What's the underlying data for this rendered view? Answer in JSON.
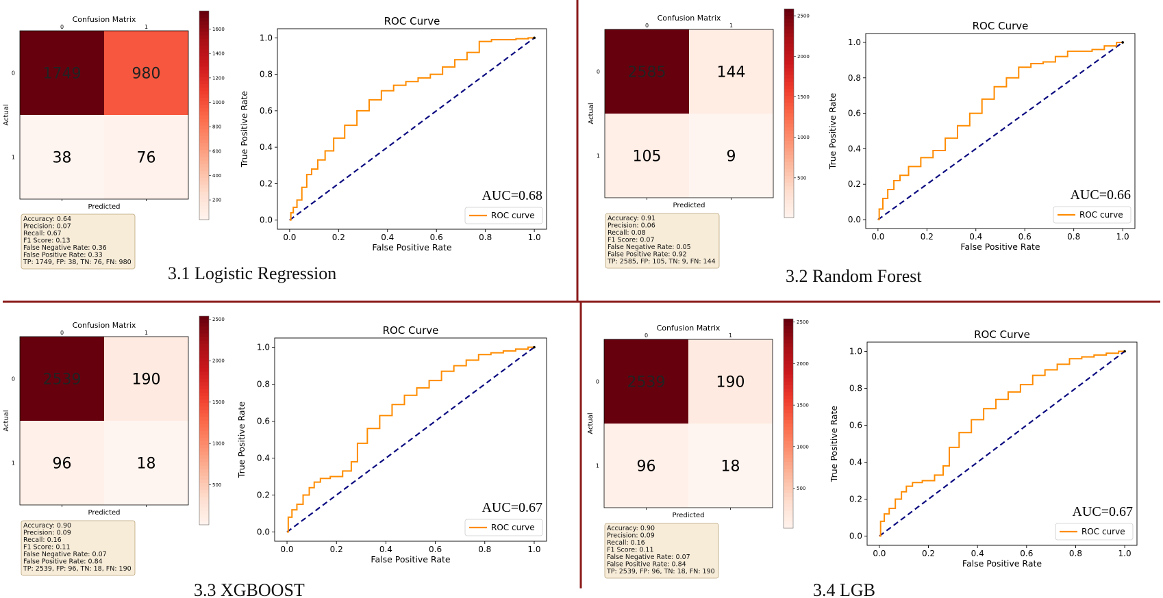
{
  "divider_color": "#8b1a1a",
  "panels": [
    {
      "model_title": "3.1 Logistic Regression",
      "confusion": {
        "title": "Confusion Matrix",
        "xlabel": "Predicted",
        "ylabel": "Actual",
        "tick_labels": [
          "0",
          "1"
        ],
        "values": [
          [
            1749,
            980
          ],
          [
            38,
            76
          ]
        ],
        "colorbar_ticks": [
          200,
          400,
          600,
          800,
          1000,
          1200,
          1400,
          1600
        ],
        "colorbar_max": 1749,
        "colorbar_min": 38
      },
      "metrics": [
        "Accuracy: 0.64",
        "Precision: 0.07",
        "Recall: 0.67",
        "F1 Score: 0.13",
        "False Negative Rate: 0.36",
        "False Positive Rate: 0.33",
        "TP: 1749, FP: 38, TN: 76, FN: 980"
      ],
      "roc": {
        "title": "ROC Curve",
        "xlabel": "False Positive Rate",
        "ylabel": "True Positive Rate",
        "auc_label": "AUC=0.68",
        "legend": "ROC curve",
        "x": [
          0,
          0.01,
          0.02,
          0.04,
          0.06,
          0.08,
          0.1,
          0.13,
          0.16,
          0.2,
          0.25,
          0.3,
          0.35,
          0.4,
          0.45,
          0.5,
          0.55,
          0.6,
          0.65,
          0.7,
          0.75,
          0.8,
          0.85,
          0.9,
          0.95,
          1.0
        ],
        "y": [
          0,
          0.04,
          0.07,
          0.11,
          0.18,
          0.25,
          0.28,
          0.33,
          0.38,
          0.45,
          0.52,
          0.6,
          0.66,
          0.71,
          0.74,
          0.76,
          0.78,
          0.8,
          0.84,
          0.88,
          0.92,
          0.98,
          0.99,
          0.99,
          0.995,
          1.0
        ]
      }
    },
    {
      "model_title": "3.2 Random Forest",
      "confusion": {
        "title": "Confusion Matrix",
        "xlabel": "Predicted",
        "ylabel": "Actual",
        "tick_labels": [
          "0",
          "1"
        ],
        "values": [
          [
            2585,
            144
          ],
          [
            105,
            9
          ]
        ],
        "colorbar_ticks": [
          500,
          1000,
          1500,
          2000,
          2500
        ],
        "colorbar_max": 2585,
        "colorbar_min": 9
      },
      "metrics": [
        "Accuracy: 0.91",
        "Precision: 0.06",
        "Recall: 0.08",
        "F1 Score: 0.07",
        "False Negative Rate: 0.05",
        "False Positive Rate: 0.92",
        "TP: 2585, FP: 105, TN: 9, FN: 144"
      ],
      "roc": {
        "title": "ROC Curve",
        "xlabel": "False Positive Rate",
        "ylabel": "True Positive Rate",
        "auc_label": "AUC=0.66",
        "legend": "ROC curve",
        "x": [
          0,
          0.01,
          0.03,
          0.05,
          0.08,
          0.1,
          0.15,
          0.2,
          0.25,
          0.3,
          0.35,
          0.4,
          0.45,
          0.5,
          0.55,
          0.6,
          0.65,
          0.7,
          0.75,
          0.8,
          0.85,
          0.9,
          0.95,
          1.0
        ],
        "y": [
          0,
          0.06,
          0.12,
          0.17,
          0.22,
          0.25,
          0.3,
          0.35,
          0.39,
          0.46,
          0.53,
          0.6,
          0.68,
          0.75,
          0.8,
          0.86,
          0.88,
          0.89,
          0.92,
          0.95,
          0.95,
          0.96,
          0.98,
          1.0
        ]
      }
    },
    {
      "model_title": "3.3 XGBOOST",
      "confusion": {
        "title": "Confusion Matrix",
        "xlabel": "Predicted",
        "ylabel": "Actual",
        "tick_labels": [
          "0",
          "1"
        ],
        "values": [
          [
            2539,
            190
          ],
          [
            96,
            18
          ]
        ],
        "colorbar_ticks": [
          500,
          1000,
          1500,
          2000,
          2500
        ],
        "colorbar_max": 2539,
        "colorbar_min": 18
      },
      "metrics": [
        "Accuracy: 0.90",
        "Precision: 0.09",
        "Recall: 0.16",
        "F1 Score: 0.11",
        "False Negative Rate: 0.07",
        "False Positive Rate: 0.84",
        "TP: 2539, FP: 96, TN: 18, FN: 190"
      ],
      "roc": {
        "title": "ROC Curve",
        "xlabel": "False Positive Rate",
        "ylabel": "True Positive Rate",
        "auc_label": "AUC=0.67",
        "legend": "ROC curve",
        "x": [
          0,
          0.01,
          0.03,
          0.05,
          0.08,
          0.1,
          0.12,
          0.15,
          0.2,
          0.25,
          0.27,
          0.3,
          0.35,
          0.4,
          0.45,
          0.5,
          0.55,
          0.6,
          0.65,
          0.7,
          0.75,
          0.8,
          0.85,
          0.9,
          0.95,
          1.0
        ],
        "y": [
          0,
          0.08,
          0.12,
          0.15,
          0.2,
          0.24,
          0.27,
          0.29,
          0.3,
          0.33,
          0.38,
          0.48,
          0.56,
          0.63,
          0.69,
          0.74,
          0.78,
          0.82,
          0.87,
          0.9,
          0.93,
          0.96,
          0.97,
          0.98,
          0.99,
          1.0
        ]
      }
    },
    {
      "model_title": "3.4 LGB",
      "confusion": {
        "title": "Confusion Matrix",
        "xlabel": "Predicted",
        "ylabel": "Actual",
        "tick_labels": [
          "0",
          "1"
        ],
        "values": [
          [
            2539,
            190
          ],
          [
            96,
            18
          ]
        ],
        "colorbar_ticks": [
          500,
          1000,
          1500,
          2000,
          2500
        ],
        "colorbar_max": 2539,
        "colorbar_min": 18
      },
      "metrics": [
        "Accuracy: 0.90",
        "Precision: 0.09",
        "Recall: 0.16",
        "F1 Score: 0.11",
        "False Negative Rate: 0.07",
        "False Positive Rate: 0.84",
        "TP: 2539, FP: 96, TN: 18, FN: 190"
      ],
      "roc": {
        "title": "ROC Curve",
        "xlabel": "False Positive Rate",
        "ylabel": "True Positive Rate",
        "auc_label": "AUC=0.67",
        "legend": "ROC curve",
        "x": [
          0,
          0.01,
          0.03,
          0.05,
          0.08,
          0.1,
          0.12,
          0.15,
          0.2,
          0.25,
          0.27,
          0.3,
          0.35,
          0.4,
          0.45,
          0.5,
          0.55,
          0.6,
          0.65,
          0.7,
          0.75,
          0.8,
          0.85,
          0.9,
          0.95,
          1.0
        ],
        "y": [
          0,
          0.08,
          0.12,
          0.15,
          0.2,
          0.24,
          0.27,
          0.29,
          0.3,
          0.33,
          0.38,
          0.48,
          0.56,
          0.63,
          0.69,
          0.74,
          0.78,
          0.82,
          0.87,
          0.9,
          0.93,
          0.96,
          0.97,
          0.98,
          0.99,
          1.0
        ]
      }
    }
  ],
  "chart_data": [
    {
      "type": "heatmap",
      "title": "Confusion Matrix",
      "xlabel": "Predicted",
      "ylabel": "Actual",
      "categories": [
        "0",
        "1"
      ],
      "values": [
        [
          1749,
          980
        ],
        [
          38,
          76
        ]
      ]
    },
    {
      "type": "line",
      "title": "ROC Curve",
      "xlabel": "False Positive Rate",
      "ylabel": "True Positive Rate",
      "xlim": [
        0,
        1
      ],
      "ylim": [
        0,
        1
      ],
      "annotation": "AUC=0.68",
      "series": [
        {
          "name": "ROC curve",
          "x": [
            0,
            0.02,
            0.06,
            0.1,
            0.2,
            0.3,
            0.4,
            0.5,
            0.6,
            0.7,
            0.8,
            0.9,
            1.0
          ],
          "y": [
            0,
            0.07,
            0.18,
            0.28,
            0.45,
            0.6,
            0.71,
            0.76,
            0.8,
            0.88,
            0.98,
            0.99,
            1.0
          ]
        }
      ]
    },
    {
      "type": "heatmap",
      "title": "Confusion Matrix",
      "xlabel": "Predicted",
      "ylabel": "Actual",
      "categories": [
        "0",
        "1"
      ],
      "values": [
        [
          2585,
          144
        ],
        [
          105,
          9
        ]
      ]
    },
    {
      "type": "line",
      "title": "ROC Curve",
      "xlabel": "False Positive Rate",
      "ylabel": "True Positive Rate",
      "xlim": [
        0,
        1
      ],
      "ylim": [
        0,
        1
      ],
      "annotation": "AUC=0.66",
      "series": [
        {
          "name": "ROC curve",
          "x": [
            0,
            0.05,
            0.1,
            0.2,
            0.3,
            0.4,
            0.5,
            0.6,
            0.7,
            0.8,
            0.9,
            1.0
          ],
          "y": [
            0,
            0.17,
            0.25,
            0.35,
            0.46,
            0.6,
            0.75,
            0.86,
            0.89,
            0.95,
            0.96,
            1.0
          ]
        }
      ]
    },
    {
      "type": "heatmap",
      "title": "Confusion Matrix",
      "xlabel": "Predicted",
      "ylabel": "Actual",
      "categories": [
        "0",
        "1"
      ],
      "values": [
        [
          2539,
          190
        ],
        [
          96,
          18
        ]
      ]
    },
    {
      "type": "line",
      "title": "ROC Curve",
      "xlabel": "False Positive Rate",
      "ylabel": "True Positive Rate",
      "xlim": [
        0,
        1
      ],
      "ylim": [
        0,
        1
      ],
      "annotation": "AUC=0.67",
      "series": [
        {
          "name": "ROC curve",
          "x": [
            0,
            0.05,
            0.1,
            0.2,
            0.3,
            0.4,
            0.5,
            0.6,
            0.7,
            0.8,
            0.9,
            1.0
          ],
          "y": [
            0,
            0.15,
            0.24,
            0.3,
            0.48,
            0.63,
            0.74,
            0.82,
            0.9,
            0.96,
            0.98,
            1.0
          ]
        }
      ]
    },
    {
      "type": "heatmap",
      "title": "Confusion Matrix",
      "xlabel": "Predicted",
      "ylabel": "Actual",
      "categories": [
        "0",
        "1"
      ],
      "values": [
        [
          2539,
          190
        ],
        [
          96,
          18
        ]
      ]
    },
    {
      "type": "line",
      "title": "ROC Curve",
      "xlabel": "False Positive Rate",
      "ylabel": "True Positive Rate",
      "xlim": [
        0,
        1
      ],
      "ylim": [
        0,
        1
      ],
      "annotation": "AUC=0.67",
      "series": [
        {
          "name": "ROC curve",
          "x": [
            0,
            0.05,
            0.1,
            0.2,
            0.3,
            0.4,
            0.5,
            0.6,
            0.7,
            0.8,
            0.9,
            1.0
          ],
          "y": [
            0,
            0.15,
            0.24,
            0.3,
            0.48,
            0.63,
            0.74,
            0.82,
            0.9,
            0.96,
            0.98,
            1.0
          ]
        }
      ]
    }
  ]
}
